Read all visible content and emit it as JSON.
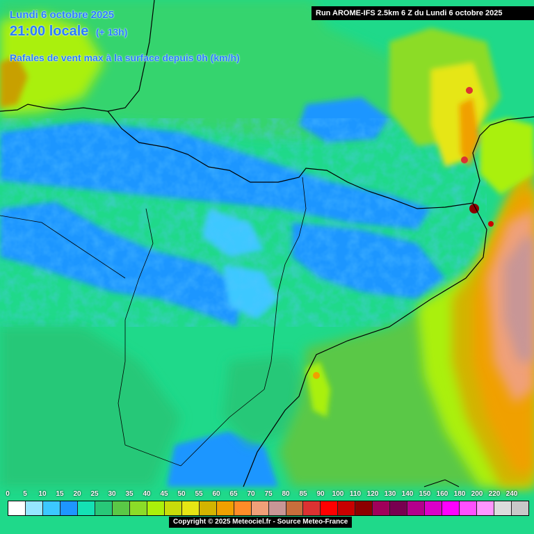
{
  "header": {
    "date": "Lundi 6 octobre 2025",
    "time": "21:00 locale",
    "range": "(+ 13h)",
    "parameter": "Rafales de vent max à la surface depuis 0h (km/h)"
  },
  "run_info": "Run AROME-IFS 2.5km 6 Z du Lundi 6 octobre 2025",
  "legend": {
    "labels": [
      "0",
      "5",
      "10",
      "15",
      "20",
      "25",
      "30",
      "35",
      "40",
      "45",
      "50",
      "55",
      "60",
      "65",
      "70",
      "75",
      "80",
      "85",
      "90",
      "100",
      "110",
      "120",
      "130",
      "140",
      "150",
      "160",
      "180",
      "200",
      "220",
      "240"
    ],
    "colors": [
      "#ffffff",
      "#96e6ff",
      "#3cc8ff",
      "#1e96ff",
      "#14e1b4",
      "#28c878",
      "#5ac846",
      "#8cdc28",
      "#aaf00a",
      "#c8dc0a",
      "#e6e614",
      "#d2b400",
      "#f0a000",
      "#ff8c28",
      "#f0a078",
      "#c89696",
      "#c86e3c",
      "#dc3232",
      "#ff0000",
      "#c80000",
      "#8c0000",
      "#a0005a",
      "#780050",
      "#b4008c",
      "#dc00c8",
      "#ff00ff",
      "#ff50ff",
      "#ff96ff",
      "#dcdcdc",
      "#c8c8c8"
    ],
    "unit": "km/h"
  },
  "copyright": "Copyright © 2025 Meteociel.fr - Source Meteo-France",
  "map_colors": {
    "land_base": "#1fd98a",
    "calm_blue": "#1e96ff",
    "light_blue": "#3cc8ff",
    "green": "#28c878",
    "yellow_green": "#aaf00a",
    "orange": "#f0a000",
    "salmon": "#f0a078",
    "mauve": "#c89696",
    "dark_red": "#8c0000"
  }
}
